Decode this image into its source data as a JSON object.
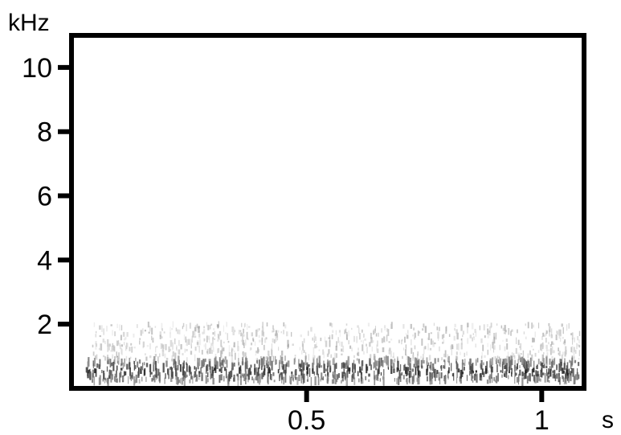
{
  "chart_data": {
    "type": "heatmap",
    "title": "",
    "xlabel": "s",
    "ylabel": "kHz",
    "xlim": [
      0,
      1.09
    ],
    "ylim": [
      0,
      11.0
    ],
    "x_ticks": [
      {
        "value": 0.5,
        "label": "0.5"
      },
      {
        "value": 1.0,
        "label": "1"
      }
    ],
    "y_ticks": [
      {
        "value": 2,
        "label": "2"
      },
      {
        "value": 4,
        "label": "4"
      },
      {
        "value": 6,
        "label": "6"
      },
      {
        "value": 8,
        "label": "8"
      },
      {
        "value": 10,
        "label": "10"
      }
    ],
    "grid": false,
    "colormap": "grayscale",
    "energy_bands": [
      {
        "t_start": 0.03,
        "t_end": 1.08,
        "f_low_khz": 0.2,
        "f_high_khz": 0.9,
        "intensity": "strong"
      },
      {
        "t_start": 0.04,
        "t_end": 1.08,
        "f_low_khz": 0.9,
        "f_high_khz": 2.0,
        "intensity": "weak"
      }
    ],
    "colors": {
      "foreground": "#000000",
      "background": "#ffffff"
    }
  }
}
